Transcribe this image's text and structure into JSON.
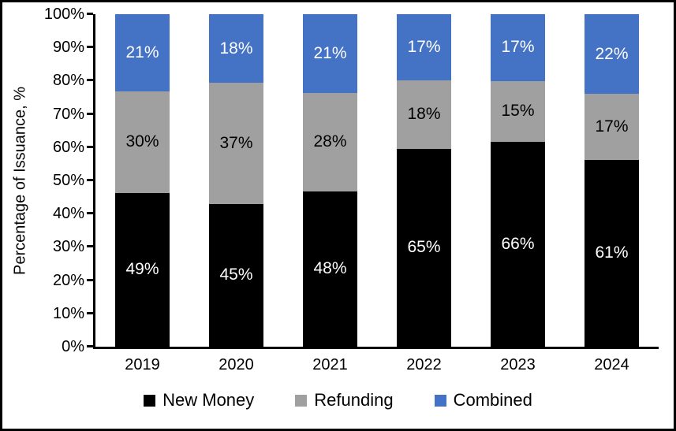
{
  "chart_data": {
    "type": "bar",
    "stacked": true,
    "percent_stacked": true,
    "title": "",
    "xlabel": "",
    "ylabel": "Percentage of Issuance, %",
    "ylim": [
      0,
      100
    ],
    "grid": false,
    "legend_position": "bottom",
    "categories": [
      "2019",
      "2020",
      "2021",
      "2022",
      "2023",
      "2024"
    ],
    "series": [
      {
        "name": "New Money",
        "color": "#000000",
        "label_color": "#ffffff",
        "values": [
          49,
          45,
          48,
          65,
          66,
          61
        ],
        "labels": [
          "49%",
          "45%",
          "48%",
          "65%",
          "66%",
          "61%"
        ]
      },
      {
        "name": "Refunding",
        "color": "#A0A0A0",
        "label_color": "#000000",
        "values": [
          30,
          37,
          28,
          18,
          15,
          17
        ],
        "labels": [
          "30%",
          "37%",
          "28%",
          "18%",
          "15%",
          "17%"
        ]
      },
      {
        "name": "Combined",
        "color": "#4472C4",
        "label_color": "#ffffff",
        "values": [
          21,
          18,
          21,
          17,
          17,
          22
        ],
        "labels": [
          "21%",
          "18%",
          "21%",
          "17%",
          "17%",
          "22%"
        ]
      }
    ],
    "y_ticks": [
      "0%",
      "10%",
      "20%",
      "30%",
      "40%",
      "50%",
      "60%",
      "70%",
      "80%",
      "90%",
      "100%"
    ]
  },
  "colors": {
    "axis": "#000000",
    "background": "#ffffff",
    "border": "#000000"
  }
}
